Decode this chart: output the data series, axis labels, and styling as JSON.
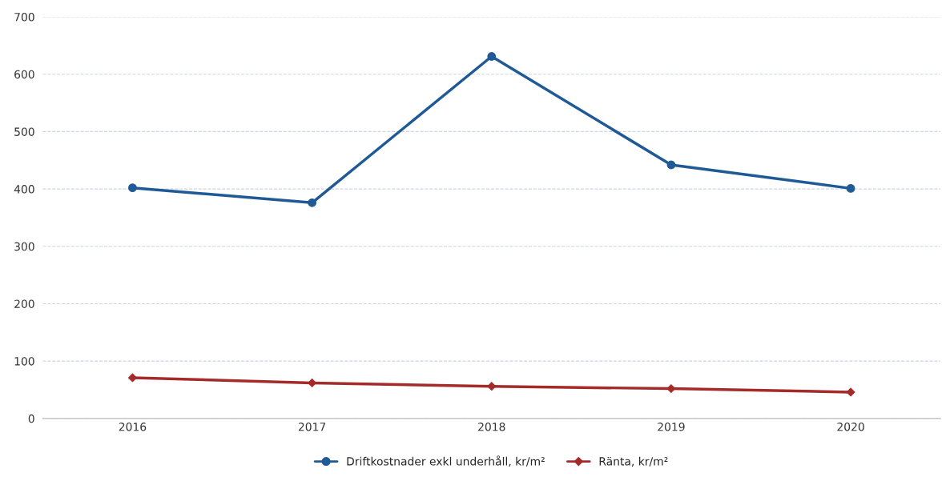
{
  "chart_data": {
    "type": "line",
    "categories": [
      "2016",
      "2017",
      "2018",
      "2019",
      "2020"
    ],
    "series": [
      {
        "name": "Driftkostnader exkl underhåll, kr/m²",
        "color": "#1f5a96",
        "marker": "circle",
        "values": [
          402,
          376,
          631,
          442,
          401
        ]
      },
      {
        "name": "Ränta, kr/m²",
        "color": "#a52a2a",
        "marker": "diamond",
        "values": [
          71,
          62,
          56,
          52,
          46
        ]
      }
    ],
    "ylim": [
      0,
      700
    ],
    "yticks": [
      0,
      100,
      200,
      300,
      400,
      500,
      600,
      700
    ],
    "grid": "y",
    "legend": "bottom",
    "line_style": "solid"
  }
}
